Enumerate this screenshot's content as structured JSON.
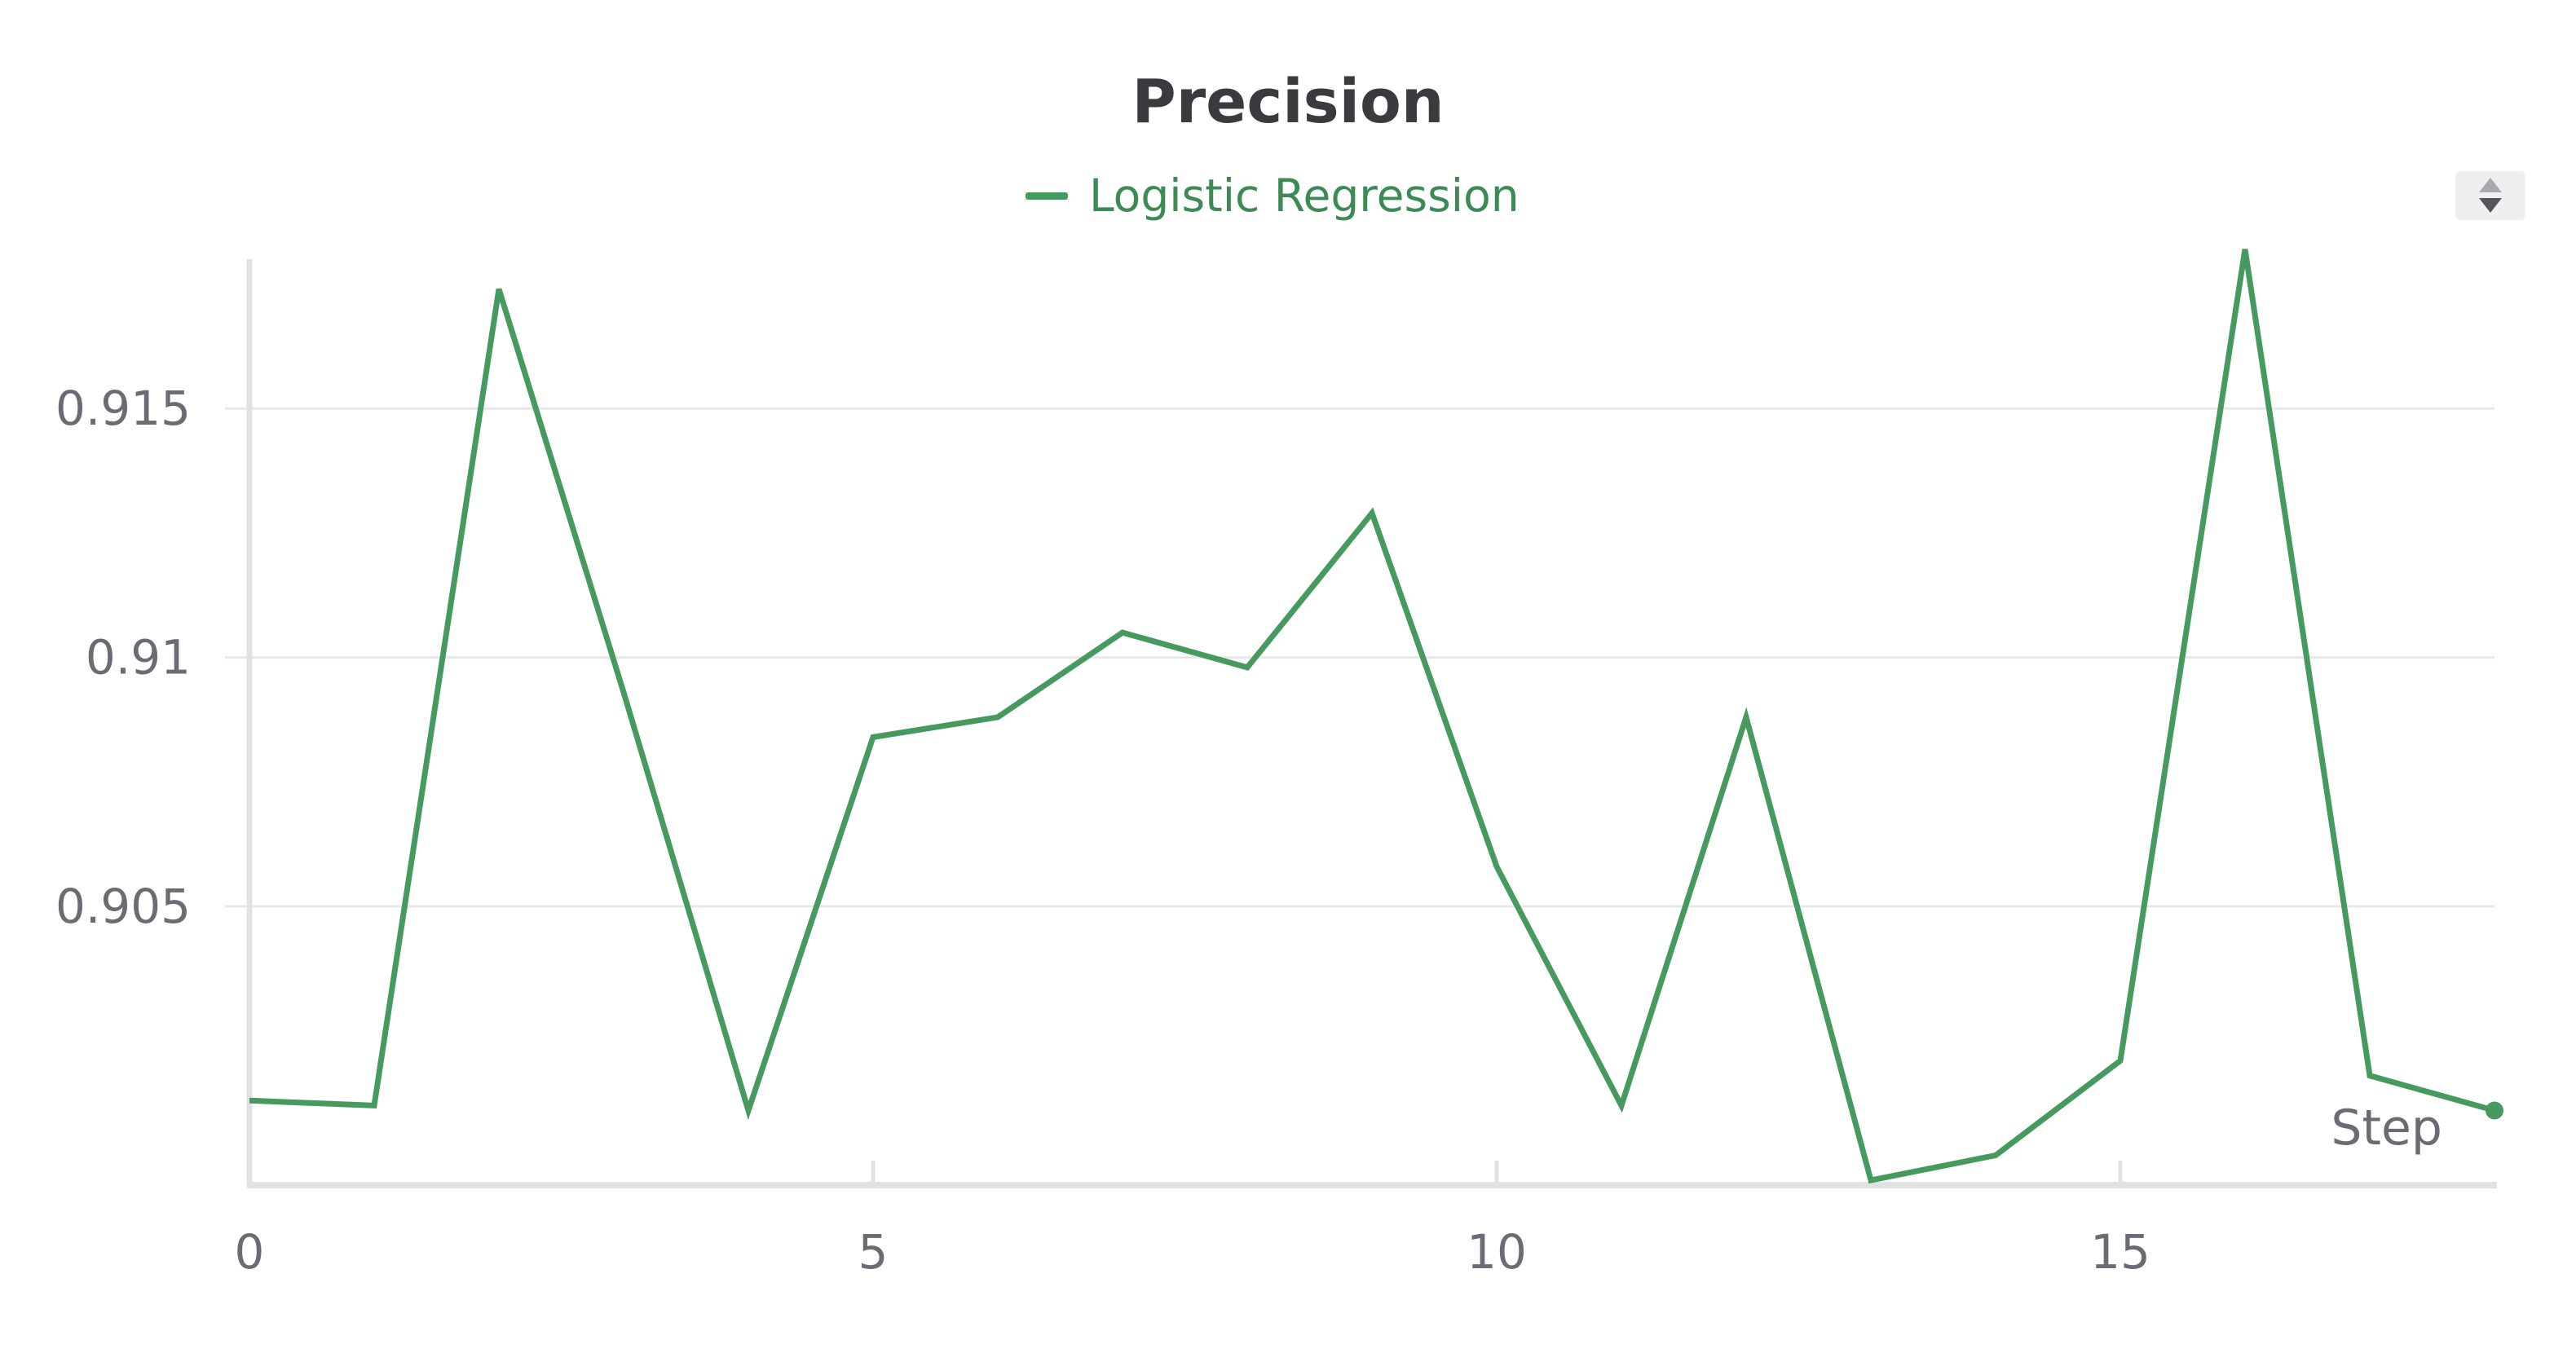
{
  "chart_data": {
    "type": "line",
    "title": "Precision",
    "xlabel": "Step",
    "ylabel": "",
    "xlim": [
      0,
      18
    ],
    "ylim": [
      0.8995,
      0.918
    ],
    "xticks": [
      0,
      5,
      10,
      15
    ],
    "yticks": [
      0.905,
      0.91,
      0.915
    ],
    "ytick_labels": [
      "0.905",
      "0.91",
      "0.915"
    ],
    "grid": true,
    "legend_position": "top-center",
    "x": [
      0,
      1,
      2,
      3,
      4,
      5,
      6,
      7,
      8,
      9,
      10,
      11,
      12,
      13,
      14,
      15,
      16,
      17,
      18
    ],
    "series": [
      {
        "name": "Logistic Regression",
        "color": "#479a5f",
        "values": [
          0.9011,
          0.901,
          0.9174,
          0.9093,
          0.9009,
          0.9084,
          0.9088,
          0.9105,
          0.9098,
          0.9129,
          0.9058,
          0.901,
          0.9088,
          0.8995,
          0.9,
          0.9019,
          0.9182,
          0.9016,
          0.9009
        ]
      }
    ]
  },
  "controls": {
    "scroll_icon": "up-down-arrows-icon"
  }
}
